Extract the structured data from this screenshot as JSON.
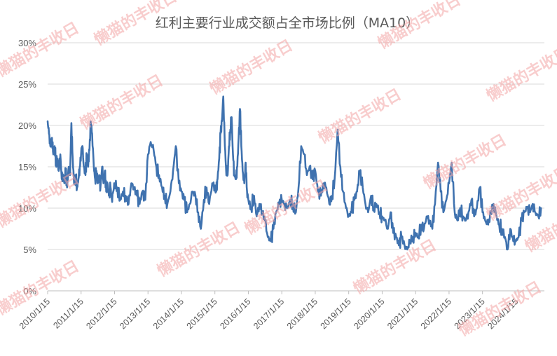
{
  "chart_data": {
    "type": "line",
    "title": "红利主要行业成交额占全市场比例（MA10）",
    "xlabel": "",
    "ylabel": "",
    "ylim": [
      0,
      30
    ],
    "y_ticks": [
      "0%",
      "5%",
      "10%",
      "15%",
      "20%",
      "25%",
      "30%"
    ],
    "x_ticks": [
      "2010/1/15",
      "2011/1/15",
      "2012/1/15",
      "2013/1/15",
      "2014/1/15",
      "2015/1/15",
      "2016/1/15",
      "2017/1/15",
      "2018/1/15",
      "2019/1/15",
      "2020/1/15",
      "2021/1/15",
      "2022/1/15",
      "2023/1/15",
      "2024/1/15"
    ],
    "grid": "horizontal",
    "legend": "none",
    "line_color": "#3f72af",
    "series": [
      {
        "x": [
          2010.0,
          2010.04,
          2010.08,
          2010.13,
          2010.17,
          2010.21,
          2010.25,
          2010.29,
          2010.33,
          2010.38,
          2010.42,
          2010.46,
          2010.5,
          2010.54,
          2010.58,
          2010.63,
          2010.67,
          2010.71,
          2010.75,
          2010.79,
          2010.83,
          2010.88,
          2010.92,
          2010.96,
          2011.0,
          2011.04,
          2011.08,
          2011.13,
          2011.17,
          2011.21,
          2011.25,
          2011.29,
          2011.33,
          2011.38,
          2011.42,
          2011.46,
          2011.5,
          2011.54,
          2011.58,
          2011.63,
          2011.67,
          2011.71,
          2011.75,
          2011.79,
          2011.83,
          2011.88,
          2011.92,
          2011.96,
          2012.0,
          2012.08,
          2012.17,
          2012.25,
          2012.33,
          2012.42,
          2012.5,
          2012.58,
          2012.67,
          2012.75,
          2012.83,
          2012.92,
          2013.0,
          2013.08,
          2013.17,
          2013.25,
          2013.33,
          2013.42,
          2013.5,
          2013.58,
          2013.67,
          2013.75,
          2013.83,
          2013.92,
          2014.0,
          2014.08,
          2014.17,
          2014.25,
          2014.33,
          2014.42,
          2014.5,
          2014.58,
          2014.67,
          2014.75,
          2014.83,
          2014.92,
          2015.0,
          2015.04,
          2015.08,
          2015.13,
          2015.17,
          2015.21,
          2015.25,
          2015.29,
          2015.33,
          2015.38,
          2015.42,
          2015.46,
          2015.5,
          2015.54,
          2015.58,
          2015.63,
          2015.67,
          2015.71,
          2015.75,
          2015.79,
          2015.83,
          2015.88,
          2015.92,
          2015.96,
          2016.0,
          2016.08,
          2016.17,
          2016.25,
          2016.33,
          2016.42,
          2016.5,
          2016.58,
          2016.67,
          2016.75,
          2016.83,
          2016.92,
          2017.0,
          2017.08,
          2017.17,
          2017.25,
          2017.33,
          2017.42,
          2017.5,
          2017.58,
          2017.67,
          2017.75,
          2017.83,
          2017.92,
          2018.0,
          2018.08,
          2018.17,
          2018.25,
          2018.33,
          2018.42,
          2018.5,
          2018.58,
          2018.67,
          2018.75,
          2018.83,
          2018.92,
          2019.0,
          2019.08,
          2019.17,
          2019.25,
          2019.33,
          2019.42,
          2019.5,
          2019.58,
          2019.67,
          2019.75,
          2019.83,
          2019.92,
          2020.0,
          2020.08,
          2020.17,
          2020.25,
          2020.33,
          2020.42,
          2020.5,
          2020.58,
          2020.67,
          2020.75,
          2020.83,
          2020.92,
          2021.0,
          2021.08,
          2021.17,
          2021.25,
          2021.33,
          2021.42,
          2021.5,
          2021.58,
          2021.67,
          2021.75,
          2021.83,
          2021.92,
          2022.0,
          2022.08,
          2022.17,
          2022.25,
          2022.33,
          2022.42,
          2022.5,
          2022.58,
          2022.67,
          2022.75,
          2022.83,
          2022.92,
          2023.0,
          2023.08,
          2023.17,
          2023.25,
          2023.33,
          2023.42,
          2023.5,
          2023.58,
          2023.67,
          2023.75,
          2023.83,
          2023.92,
          2024.0,
          2024.08,
          2024.17,
          2024.25,
          2024.33,
          2024.42,
          2024.5,
          2024.58,
          2024.67,
          2024.75
        ],
        "values": [
          20.5,
          19.0,
          17.5,
          18.5,
          16.5,
          17.5,
          15.5,
          16.0,
          14.5,
          16.5,
          13.5,
          14.0,
          13.0,
          14.5,
          12.5,
          15.0,
          14.0,
          20.3,
          16.0,
          13.0,
          14.0,
          12.5,
          13.5,
          15.0,
          16.5,
          17.5,
          15.0,
          14.0,
          16.5,
          15.0,
          17.0,
          20.5,
          19.0,
          15.0,
          13.5,
          14.5,
          13.0,
          14.0,
          12.5,
          15.0,
          13.0,
          14.5,
          12.0,
          13.0,
          11.5,
          12.5,
          11.0,
          12.0,
          13.0,
          12.5,
          11.0,
          12.0,
          11.5,
          10.5,
          13.0,
          12.5,
          11.5,
          10.5,
          12.0,
          11.0,
          16.5,
          18.0,
          17.0,
          15.0,
          14.0,
          12.5,
          11.5,
          10.5,
          12.0,
          14.5,
          17.5,
          13.0,
          12.0,
          11.0,
          9.5,
          10.5,
          12.0,
          11.5,
          9.5,
          7.5,
          11.0,
          12.5,
          10.5,
          13.0,
          12.5,
          12.0,
          13.5,
          16.0,
          19.0,
          20.5,
          23.5,
          18.5,
          15.0,
          14.0,
          17.5,
          19.5,
          21.0,
          16.5,
          14.0,
          13.5,
          15.0,
          18.5,
          22.0,
          17.5,
          14.5,
          13.0,
          15.5,
          12.0,
          11.0,
          10.0,
          11.5,
          9.0,
          10.5,
          9.5,
          8.5,
          6.5,
          6.0,
          7.5,
          9.5,
          10.5,
          11.0,
          10.5,
          10.0,
          11.0,
          10.5,
          9.5,
          12.5,
          17.5,
          16.5,
          14.0,
          15.0,
          13.5,
          14.5,
          12.0,
          11.5,
          13.0,
          12.5,
          10.5,
          11.5,
          13.5,
          19.5,
          15.0,
          12.0,
          10.0,
          9.0,
          9.5,
          11.0,
          12.0,
          14.5,
          12.5,
          10.5,
          9.5,
          11.5,
          10.0,
          10.5,
          9.5,
          9.0,
          8.5,
          7.5,
          9.5,
          7.0,
          6.5,
          5.5,
          6.5,
          5.5,
          5.0,
          6.0,
          6.5,
          7.0,
          6.5,
          8.0,
          7.5,
          9.0,
          8.5,
          7.5,
          10.5,
          15.5,
          12.0,
          9.5,
          11.0,
          13.0,
          15.5,
          9.5,
          8.5,
          10.0,
          9.0,
          8.5,
          9.5,
          11.0,
          9.0,
          10.0,
          12.5,
          9.5,
          8.5,
          8.0,
          9.5,
          10.5,
          9.0,
          8.0,
          7.5,
          6.5,
          5.0,
          7.5,
          6.0,
          6.0,
          6.5,
          8.5,
          9.5,
          10.0,
          9.5,
          10.5,
          9.5,
          9.0,
          10.0
        ]
      }
    ]
  },
  "watermark": {
    "text": "懒猫的丰收日",
    "color": "#f4a6a6"
  }
}
